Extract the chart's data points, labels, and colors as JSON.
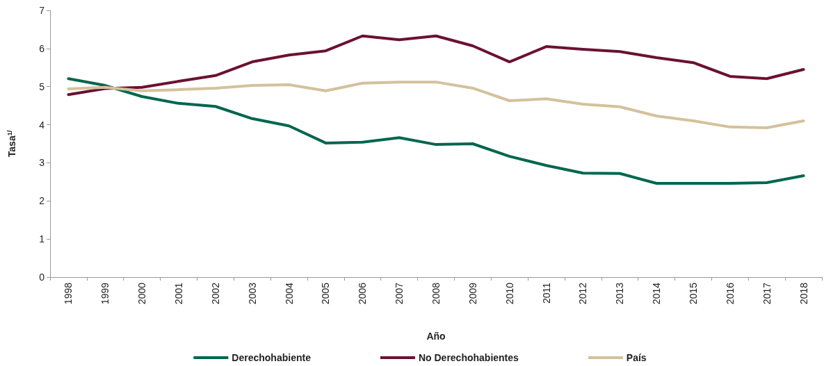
{
  "chart_data": {
    "type": "line",
    "xlabel": "Año",
    "ylabel": "Tasa$^{1/}$",
    "categories": [
      "1998",
      "1999",
      "2000",
      "2001",
      "2002",
      "2003",
      "2004",
      "2005",
      "2006",
      "2007",
      "2008",
      "2009",
      "2010",
      "2011",
      "2012",
      "2013",
      "2014",
      "2015",
      "2016",
      "2017",
      "2018"
    ],
    "ylim": [
      0,
      7
    ],
    "yticks": [
      0,
      1,
      2,
      3,
      4,
      5,
      6,
      7
    ],
    "grid": false,
    "legend": "bottom",
    "marker": "none",
    "line_style": "solid",
    "series": [
      {
        "name": "Derechohabiente",
        "color": "#00664f",
        "values": [
          5.21,
          5.03,
          4.74,
          4.56,
          4.48,
          4.16,
          3.97,
          3.52,
          3.54,
          3.66,
          3.48,
          3.5,
          3.17,
          2.93,
          2.73,
          2.72,
          2.46,
          2.46,
          2.46,
          2.48,
          2.66
        ]
      },
      {
        "name": "No Derechohabientes",
        "color": "#6b1132",
        "values": [
          4.79,
          4.95,
          4.98,
          5.14,
          5.29,
          5.65,
          5.83,
          5.94,
          6.33,
          6.23,
          6.33,
          6.07,
          5.65,
          6.05,
          5.98,
          5.92,
          5.76,
          5.63,
          5.27,
          5.21,
          5.45
        ]
      },
      {
        "name": "País",
        "color": "#d4c19c",
        "values": [
          4.94,
          4.98,
          4.89,
          4.92,
          4.96,
          5.03,
          5.05,
          4.89,
          5.09,
          5.12,
          5.12,
          4.96,
          4.63,
          4.68,
          4.54,
          4.47,
          4.23,
          4.1,
          3.94,
          3.92,
          4.1
        ]
      }
    ]
  }
}
